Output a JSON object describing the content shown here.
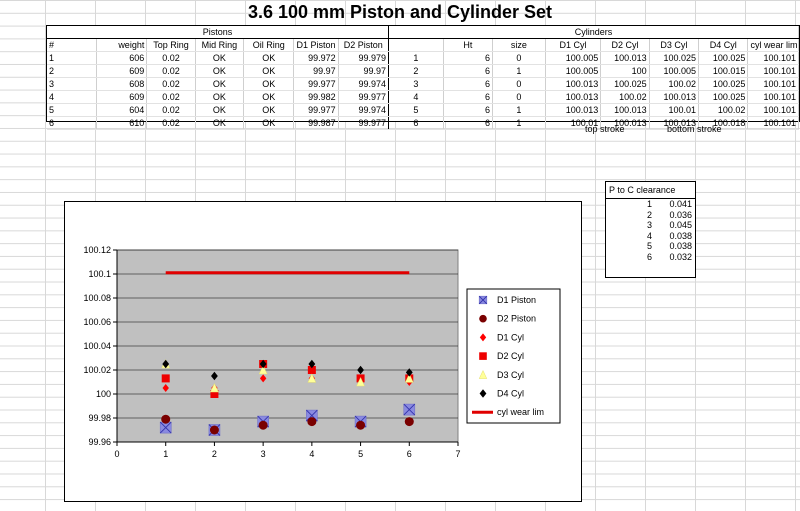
{
  "title": "3.6 100 mm  Piston and Cylinder Set",
  "table": {
    "group_pistons": "Pistons",
    "group_cylinders": "Cylinders",
    "headers": [
      "#",
      "weight",
      "Top Ring",
      "Mid Ring",
      "Oil Ring",
      "D1 Piston",
      "D2 Piston",
      "",
      "Ht",
      "size",
      "D1 Cyl",
      "D2 Cyl",
      "D3 Cyl",
      "D4 Cyl",
      "cyl wear lim"
    ],
    "rows": [
      [
        "1",
        "606",
        "0.02",
        "OK",
        "OK",
        "99.972",
        "99.979",
        "1",
        "6",
        "0",
        "100.005",
        "100.013",
        "100.025",
        "100.025",
        "100.101"
      ],
      [
        "2",
        "609",
        "0.02",
        "OK",
        "OK",
        "99.97",
        "99.97",
        "2",
        "6",
        "1",
        "100.005",
        "100",
        "100.005",
        "100.015",
        "100.101"
      ],
      [
        "3",
        "608",
        "0.02",
        "OK",
        "OK",
        "99.977",
        "99.974",
        "3",
        "6",
        "0",
        "100.013",
        "100.025",
        "100.02",
        "100.025",
        "100.101"
      ],
      [
        "4",
        "609",
        "0.02",
        "OK",
        "OK",
        "99.982",
        "99.977",
        "4",
        "6",
        "0",
        "100.013",
        "100.02",
        "100.013",
        "100.025",
        "100.101"
      ],
      [
        "5",
        "604",
        "0.02",
        "OK",
        "OK",
        "99.977",
        "99.974",
        "5",
        "6",
        "1",
        "100.013",
        "100.013",
        "100.01",
        "100.02",
        "100.101"
      ],
      [
        "6",
        "610",
        "0.02",
        "OK",
        "OK",
        "99.987",
        "99.977",
        "6",
        "6",
        "1",
        "100.01",
        "100.013",
        "100.013",
        "100.018",
        "100.101"
      ]
    ],
    "top_stroke": "top stroke",
    "bottom_stroke": "bottom stroke"
  },
  "clearance": {
    "header": "P to C clearance",
    "rows": [
      [
        "1",
        "0.041"
      ],
      [
        "2",
        "0.036"
      ],
      [
        "3",
        "0.045"
      ],
      [
        "4",
        "0.038"
      ],
      [
        "5",
        "0.038"
      ],
      [
        "6",
        "0.032"
      ]
    ]
  },
  "colors": {
    "plot_bg": "#c0c0c0",
    "d1_piston": "#7070c8",
    "d2_piston": "#7a0000",
    "d1_cyl": "#ff0000",
    "d2_cyl": "#ee0000",
    "d3_cyl": "#ffff99",
    "d4_cyl": "#000000",
    "wear_lim": "#e00000"
  },
  "chart_data": {
    "type": "scatter",
    "title": "",
    "xlabel": "",
    "ylabel": "",
    "xlim": [
      0,
      7
    ],
    "ylim": [
      99.96,
      100.12
    ],
    "xticks": [
      "0",
      "1",
      "2",
      "3",
      "4",
      "5",
      "6",
      "7"
    ],
    "yticks": [
      "99.96",
      "99.98",
      "100",
      "100.02",
      "100.04",
      "100.06",
      "100.08",
      "100.1",
      "100.12"
    ],
    "grid": "horizontal",
    "legend_position": "right",
    "x": [
      1,
      2,
      3,
      4,
      5,
      6
    ],
    "series": [
      {
        "name": "D1 Piston",
        "marker": "x-square",
        "values": [
          99.972,
          99.97,
          99.977,
          99.982,
          99.977,
          99.987
        ]
      },
      {
        "name": "D2 Piston",
        "marker": "circle",
        "values": [
          99.979,
          99.97,
          99.974,
          99.977,
          99.974,
          99.977
        ]
      },
      {
        "name": "D1 Cyl",
        "marker": "diamond",
        "values": [
          100.005,
          100.005,
          100.013,
          100.013,
          100.013,
          100.01
        ]
      },
      {
        "name": "D2 Cyl",
        "marker": "square",
        "values": [
          100.013,
          100,
          100.025,
          100.02,
          100.013,
          100.013
        ]
      },
      {
        "name": "D3 Cyl",
        "marker": "triangle",
        "values": [
          100.025,
          100.005,
          100.02,
          100.013,
          100.01,
          100.013
        ]
      },
      {
        "name": "D4 Cyl",
        "marker": "diamond",
        "values": [
          100.025,
          100.015,
          100.025,
          100.025,
          100.02,
          100.018
        ]
      },
      {
        "name": "cyl wear lim",
        "marker": "line",
        "values": [
          100.101,
          100.101,
          100.101,
          100.101,
          100.101,
          100.101
        ]
      }
    ]
  }
}
